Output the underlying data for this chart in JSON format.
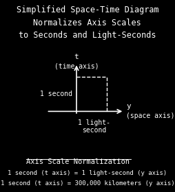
{
  "bg_color": "#000000",
  "fg_color": "#ffffff",
  "title_lines": [
    "Simplified Space-Time Diagram",
    "Normalizes Axis Scales",
    "to Seconds and Light-Seconds"
  ],
  "title_fontsize": 8.5,
  "axis_label_t": "t",
  "axis_label_t_sub": "(time axis)",
  "axis_label_y": "y",
  "axis_label_y_sub": "(space axis)",
  "label_1second": "1 second",
  "label_1lightsecond": "1 light-\nsecond",
  "underline_text": "Axis Scale Normalization",
  "note1": "1 second (t axis) = 1 light-second (y axis)",
  "note2": "1 second (t axis) = 300,000 kilometers (y axis)",
  "note_fontsize": 6.5,
  "underline_fontsize": 7.5,
  "diagram_label_fontsize": 7.0,
  "axis_name_fontsize": 8.0
}
